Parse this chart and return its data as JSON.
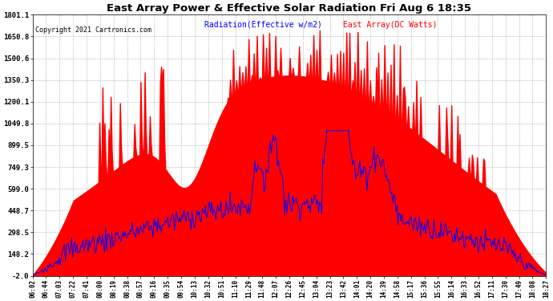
{
  "title": "East Array Power & Effective Solar Radiation Fri Aug 6 18:35",
  "copyright": "Copyright 2021 Cartronics.com",
  "legend_radiation": "Radiation(Effective w/m2)",
  "legend_array": "East Array(DC Watts)",
  "ymin": -2.0,
  "ymax": 1801.1,
  "yticks": [
    1801.1,
    1650.8,
    1500.6,
    1350.3,
    1200.1,
    1049.8,
    899.5,
    749.3,
    599.0,
    448.7,
    298.5,
    148.2,
    -2.0
  ],
  "ytick_labels": [
    "1801.1",
    "1650.8",
    "1500.6",
    "1350.3",
    "1200.1",
    "1049.8",
    "899.5",
    "749.3",
    "599.0",
    "448.7",
    "298.5",
    "148.2",
    "-2.0"
  ],
  "color_radiation": "#0000ff",
  "color_array_fill": "#ff0000",
  "background_color": "#ffffff",
  "grid_color": "#808080",
  "title_color": "#000000",
  "copyright_color": "#000000",
  "legend_radiation_color": "#0000ff",
  "legend_array_color": "#ff0000",
  "time_labels": [
    "06:02",
    "06:44",
    "07:03",
    "07:22",
    "07:41",
    "08:00",
    "08:19",
    "08:38",
    "08:57",
    "09:16",
    "09:35",
    "09:54",
    "10:13",
    "10:32",
    "10:51",
    "11:10",
    "11:29",
    "11:48",
    "12:07",
    "12:26",
    "12:45",
    "13:04",
    "13:23",
    "13:42",
    "14:01",
    "14:20",
    "14:39",
    "14:58",
    "15:17",
    "15:36",
    "15:55",
    "16:14",
    "16:33",
    "16:52",
    "17:11",
    "17:30",
    "17:49",
    "18:08",
    "18:27"
  ]
}
